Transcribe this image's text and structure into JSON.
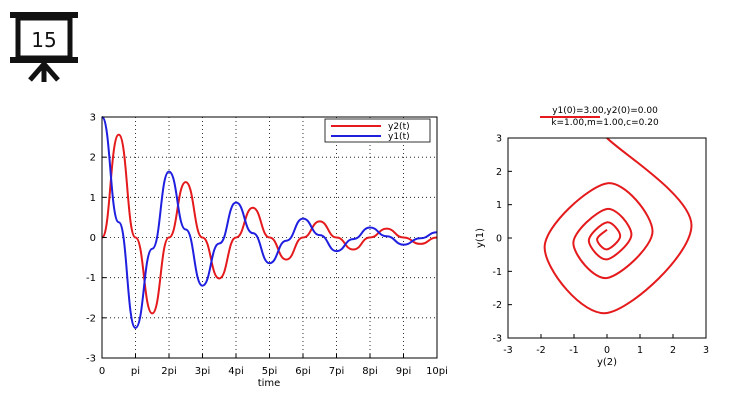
{
  "slide": {
    "number": "15",
    "icon": "presentation-board-icon"
  },
  "chart_data": [
    {
      "type": "line",
      "xlabel": "time",
      "ylabel": "",
      "xlim": [
        0,
        31.416
      ],
      "ylim": [
        -3,
        3
      ],
      "x_ticks": [
        "0",
        "pi",
        "2pi",
        "3pi",
        "4pi",
        "5pi",
        "6pi",
        "7pi",
        "8pi",
        "9pi",
        "10pi"
      ],
      "y_ticks": [
        "3",
        "2",
        "1",
        "0",
        "-1",
        "-2",
        "-3"
      ],
      "grid": true,
      "legend": "top-right",
      "series": [
        {
          "name": "y2(t)",
          "color": "#e41a1c",
          "x": [
            0,
            1.57,
            3.14,
            4.71,
            6.28,
            7.85,
            9.42,
            10.99,
            12.57,
            14.14,
            15.71,
            17.28,
            18.85,
            20.42,
            21.99,
            23.56,
            25.13,
            26.7,
            28.27,
            29.85,
            31.42
          ],
          "values": [
            0,
            2.56,
            0,
            -1.89,
            0,
            1.38,
            0,
            -1.02,
            0,
            0.74,
            0,
            -0.55,
            0,
            0.4,
            0,
            -0.3,
            0,
            0.22,
            0,
            -0.16,
            0
          ]
        },
        {
          "name": "y1(t)",
          "color": "#1f1fe0",
          "x": [
            0,
            1.57,
            3.14,
            4.71,
            6.28,
            7.85,
            9.42,
            10.99,
            12.57,
            14.14,
            15.71,
            17.28,
            18.85,
            20.42,
            21.99,
            23.56,
            25.13,
            26.7,
            28.27,
            29.85,
            31.42
          ],
          "values": [
            3.0,
            0.38,
            -2.25,
            -0.28,
            1.64,
            0.2,
            -1.2,
            -0.15,
            0.87,
            0.11,
            -0.64,
            -0.08,
            0.47,
            0.06,
            -0.34,
            -0.04,
            0.25,
            0.03,
            -0.18,
            -0.02,
            0.13
          ]
        }
      ]
    },
    {
      "type": "line",
      "title": "y1(0)=3.00,y2(0)=0.00",
      "subtitle": "k=1.00,m=1.00,c=0.20",
      "xlabel": "y(2)",
      "ylabel": "y(1)",
      "xlim": [
        -3,
        3
      ],
      "ylim": [
        -3,
        3
      ],
      "x_ticks": [
        "-3",
        "-2",
        "-1",
        "0",
        "1",
        "2",
        "3"
      ],
      "y_ticks": [
        "3",
        "2",
        "1",
        "0",
        "-1",
        "-2",
        "-3"
      ],
      "grid": false,
      "series": [
        {
          "color": "#e41a1c",
          "x": [
            0,
            2.56,
            0,
            -1.89,
            0,
            1.38,
            0,
            -1.02,
            0,
            0.74,
            0,
            -0.55,
            0,
            0.4,
            0,
            -0.3,
            0
          ],
          "values": [
            3.0,
            0.38,
            -2.25,
            -0.28,
            1.64,
            0.2,
            -1.2,
            -0.15,
            0.87,
            0.11,
            -0.64,
            -0.08,
            0.47,
            0.06,
            -0.34,
            -0.04,
            0.25
          ]
        }
      ]
    }
  ]
}
